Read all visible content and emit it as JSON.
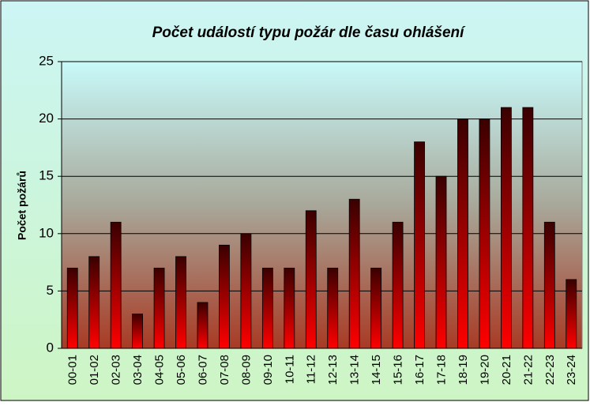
{
  "chart_data": {
    "type": "bar",
    "title": "Počet událostí typu požár dle času ohlášení",
    "y_label": "Počet požárů",
    "categories": [
      "00-01",
      "01-02",
      "02-03",
      "03-04",
      "04-05",
      "05-06",
      "06-07",
      "07-08",
      "08-09",
      "09-10",
      "10-11",
      "11-12",
      "12-13",
      "13-14",
      "14-15",
      "15-16",
      "16-17",
      "17-18",
      "18-19",
      "19-20",
      "20-21",
      "21-22",
      "22-23",
      "23-24"
    ],
    "values": [
      7,
      8,
      11,
      3,
      7,
      8,
      4,
      9,
      10,
      7,
      7,
      12,
      7,
      13,
      7,
      11,
      18,
      15,
      20,
      20,
      21,
      21,
      11,
      6
    ],
    "color": "#ff0000",
    "ylim": [
      0,
      25
    ],
    "yticks": [
      0,
      5,
      10,
      15,
      20,
      25
    ],
    "grid": true
  }
}
